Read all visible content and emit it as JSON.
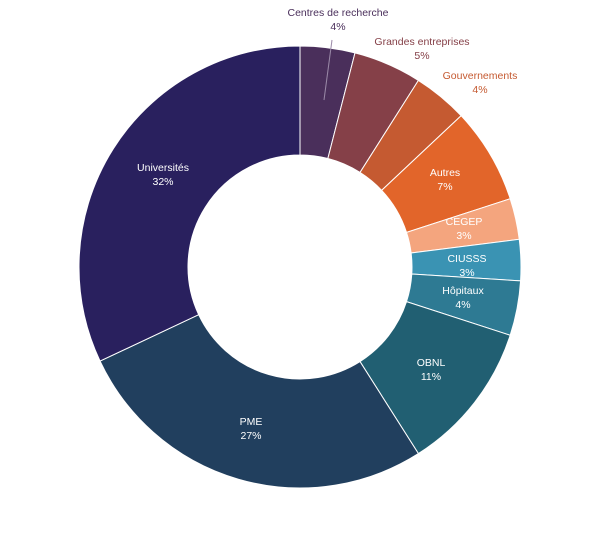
{
  "chart_data": {
    "type": "donut",
    "title": "",
    "slices": [
      {
        "label": "Centres de recherche",
        "value": 4,
        "value_label": "4%",
        "color": "#4a2f5b",
        "label_color": "#4a2f5b",
        "outside": true
      },
      {
        "label": "Grandes entreprises",
        "value": 5,
        "value_label": "5%",
        "color": "#854048",
        "label_color": "#854048",
        "outside": true
      },
      {
        "label": "Gouvernements",
        "value": 4,
        "value_label": "4%",
        "color": "#c55a31",
        "label_color": "#c55a31",
        "outside": true
      },
      {
        "label": "Autres",
        "value": 7,
        "value_label": "7%",
        "color": "#e2652a",
        "label_color": "#ffffff",
        "outside": false
      },
      {
        "label": "CEGEP",
        "value": 3,
        "value_label": "3%",
        "color": "#f4a57e",
        "label_color": "#ffffff",
        "outside": false
      },
      {
        "label": "CIUSSS",
        "value": 3,
        "value_label": "3%",
        "color": "#3a93b3",
        "label_color": "#ffffff",
        "outside": false
      },
      {
        "label": "Hôpitaux",
        "value": 4,
        "value_label": "4%",
        "color": "#2e7a93",
        "label_color": "#ffffff",
        "outside": false
      },
      {
        "label": "OBNL",
        "value": 11,
        "value_label": "11%",
        "color": "#215f72",
        "label_color": "#ffffff",
        "outside": false
      },
      {
        "label": "PME",
        "value": 27,
        "value_label": "27%",
        "color": "#213f5e",
        "label_color": "#ffffff",
        "outside": false
      },
      {
        "label": "Universités",
        "value": 32,
        "value_label": "32%",
        "color": "#29205e",
        "label_color": "#ffffff",
        "outside": false
      }
    ],
    "start_angle": "12 o'clock",
    "direction": "clockwise",
    "legend": "none"
  }
}
